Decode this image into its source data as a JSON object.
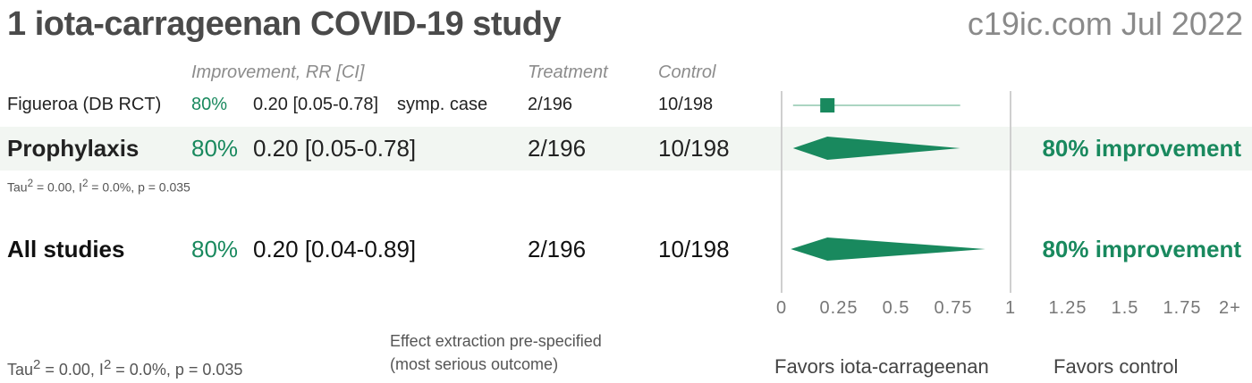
{
  "title": "1 iota-carrageenan COVID-19 study",
  "site": "c19ic.com Jul 2022",
  "headers": {
    "improvement": "Improvement, RR [CI]",
    "treatment": "Treatment",
    "control": "Control"
  },
  "study": {
    "name": "Figueroa (DB RCT)",
    "improvement": "80%",
    "rr": "0.20 [0.05-0.78]",
    "outcome": "symp. case",
    "treatment": "2/196",
    "control": "10/198"
  },
  "prophylaxis": {
    "name": "Prophylaxis",
    "improvement": "80%",
    "rr": "0.20 [0.05-0.78]",
    "treatment": "2/196",
    "control": "10/198",
    "summary": "80% improvement",
    "tau_label": "Tau",
    "tau_value": " = 0.00, I",
    "i2_value": " = 0.0%, p = 0.035"
  },
  "all_studies": {
    "name": "All studies",
    "improvement": "80%",
    "rr": "0.20 [0.04-0.89]",
    "treatment": "2/196",
    "control": "10/198",
    "summary": "80% improvement"
  },
  "footer": {
    "tau_label": "Tau",
    "tau_value": " = 0.00, I",
    "i2_value": " = 0.0%, p = 0.035",
    "note_line1": "Effect extraction pre-specified",
    "note_line2": "(most serious outcome)",
    "favors_left": "Favors iota-carrageenan",
    "favors_right": "Favors control",
    "superscript": "2"
  },
  "chart_data": {
    "type": "forest",
    "xlim": [
      0,
      2
    ],
    "axis_ticks": [
      "0",
      "0.25",
      "0.5",
      "0.75",
      "1",
      "1.25",
      "1.5",
      "1.75",
      "2+"
    ],
    "rows": [
      {
        "label": "Figueroa (DB RCT)",
        "kind": "study",
        "estimate": 0.2,
        "lower": 0.05,
        "upper": 0.78
      },
      {
        "label": "Prophylaxis",
        "kind": "summary",
        "estimate": 0.2,
        "lower": 0.05,
        "upper": 0.78
      },
      {
        "label": "All studies",
        "kind": "summary",
        "estimate": 0.2,
        "lower": 0.04,
        "upper": 0.89
      }
    ],
    "colors": {
      "marker": "#19895e",
      "ci_line": "#8fc7ae",
      "axis": "#cfcfcf"
    }
  }
}
